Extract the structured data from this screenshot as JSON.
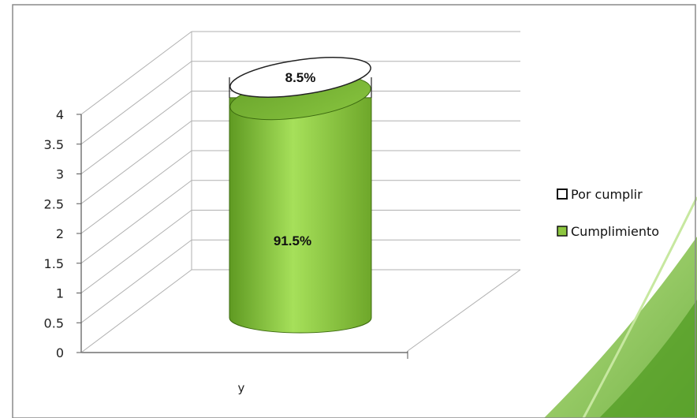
{
  "chart_data": {
    "type": "bar",
    "style": "stacked-cylinder-3d",
    "categories": [
      "y"
    ],
    "series": [
      {
        "name": "Cumplimiento",
        "values": [
          3.66
        ],
        "label": "91.5%",
        "color": "#8cc63f"
      },
      {
        "name": "Por cumplir",
        "values": [
          0.34
        ],
        "label": "8.5%",
        "color": "#ffffff"
      }
    ],
    "ylim": [
      0,
      4
    ],
    "yticks": [
      "0",
      "0.5",
      "1",
      "1.5",
      "2",
      "2.5",
      "3",
      "3.5",
      "4"
    ],
    "grid": true,
    "legend_position": "right"
  },
  "colors": {
    "fill_green": "#8cc63f",
    "grid": "#b0b0b0",
    "decor_green": "#7fc242"
  }
}
